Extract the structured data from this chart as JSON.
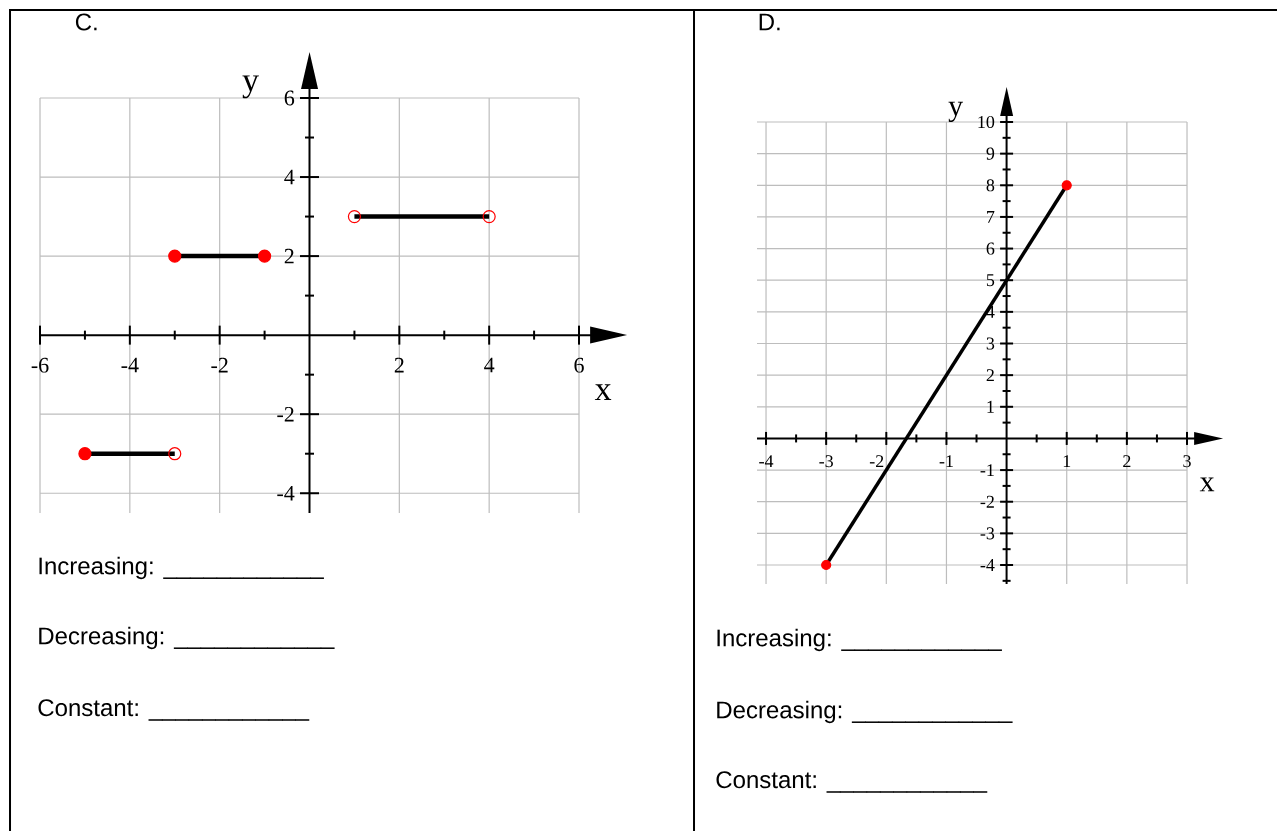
{
  "chart_data": [
    {
      "type": "line",
      "title": "C.",
      "xlabel": "x",
      "ylabel": "y",
      "xlim": [
        -6,
        6
      ],
      "ylim": [
        -4.5,
        6
      ],
      "xticks": [
        -6,
        {
          "value": -5,
          "label": null
        },
        -4,
        {
          "value": -3,
          "label": null
        },
        -2,
        {
          "value": -1,
          "label": null
        },
        {
          "value": 1,
          "label": null
        },
        2,
        {
          "value": 3,
          "label": null
        },
        4,
        {
          "value": 5,
          "label": null
        },
        6
      ],
      "yticks": [
        -4,
        {
          "value": -3,
          "label": null
        },
        -2,
        {
          "value": -1,
          "label": null
        },
        {
          "value": 1,
          "label": null
        },
        2,
        {
          "value": 3,
          "label": null
        },
        4,
        {
          "value": 5,
          "label": null
        },
        6
      ],
      "grid": true,
      "series": [
        {
          "color": "#000000",
          "x": [
            -5,
            -3
          ],
          "values": [
            -3,
            -3
          ]
        },
        {
          "color": "#000000",
          "x": [
            -3,
            -1
          ],
          "values": [
            2,
            2
          ]
        },
        {
          "color": "#000000",
          "x": [
            1,
            4
          ],
          "values": [
            3,
            3
          ]
        },
        {
          "type": "scatter",
          "color": "#ff0000",
          "marker": "circle",
          "x": [
            -5,
            -3,
            -1
          ],
          "values": [
            -3,
            2,
            2
          ]
        },
        {
          "type": "scatter",
          "color": "#ff0000",
          "marker": "circle-open",
          "x": [
            -3,
            1,
            4
          ],
          "values": [
            -3,
            3,
            3
          ]
        }
      ],
      "annotations": [
        "Increasing: ____________",
        "Decreasing: ____________",
        "Constant: ____________"
      ]
    },
    {
      "type": "line",
      "title": "D.",
      "xlabel": "x",
      "ylabel": "y",
      "xlim": [
        -4.15,
        3
      ],
      "ylim": [
        -4.6,
        10
      ],
      "xticks": [
        -4,
        {
          "value": -3.5,
          "label": null
        },
        -3,
        {
          "value": -2.5,
          "label": null
        },
        -2,
        {
          "value": -1.5,
          "label": null
        },
        -1,
        {
          "value": -0.5,
          "label": null
        },
        {
          "value": 0.5,
          "label": null
        },
        1,
        {
          "value": 1.5,
          "label": null
        },
        2,
        {
          "value": 2.5,
          "label": null
        },
        3
      ],
      "yticks": [
        {
          "value": -4.5,
          "label": null
        },
        -4,
        {
          "value": -3.5,
          "label": null
        },
        -3,
        {
          "value": -2.5,
          "label": null
        },
        -2,
        {
          "value": -1.5,
          "label": null
        },
        -1,
        {
          "value": -0.5,
          "label": null
        },
        {
          "value": 0.5,
          "label": null
        },
        1,
        {
          "value": 1.5,
          "label": null
        },
        2,
        {
          "value": 2.5,
          "label": null
        },
        3,
        {
          "value": 3.5,
          "label": null
        },
        4,
        {
          "value": 4.5,
          "label": null
        },
        5,
        {
          "value": 5.5,
          "label": null
        },
        6,
        {
          "value": 6.5,
          "label": null
        },
        7,
        {
          "value": 7.5,
          "label": null
        },
        8,
        {
          "value": 8.5,
          "label": null
        },
        9,
        {
          "value": 9.5,
          "label": null
        },
        10
      ],
      "grid": true,
      "series": [
        {
          "color": "#000000",
          "x": [
            -3,
            1
          ],
          "values": [
            -4,
            8
          ]
        },
        {
          "type": "scatter",
          "color": "#ff0000",
          "marker": "circle",
          "x": [
            -3,
            1
          ],
          "values": [
            -4,
            8
          ]
        }
      ],
      "annotations": [
        "Increasing: ____________",
        "Decreasing: ____________",
        "Constant: ____________"
      ]
    }
  ]
}
